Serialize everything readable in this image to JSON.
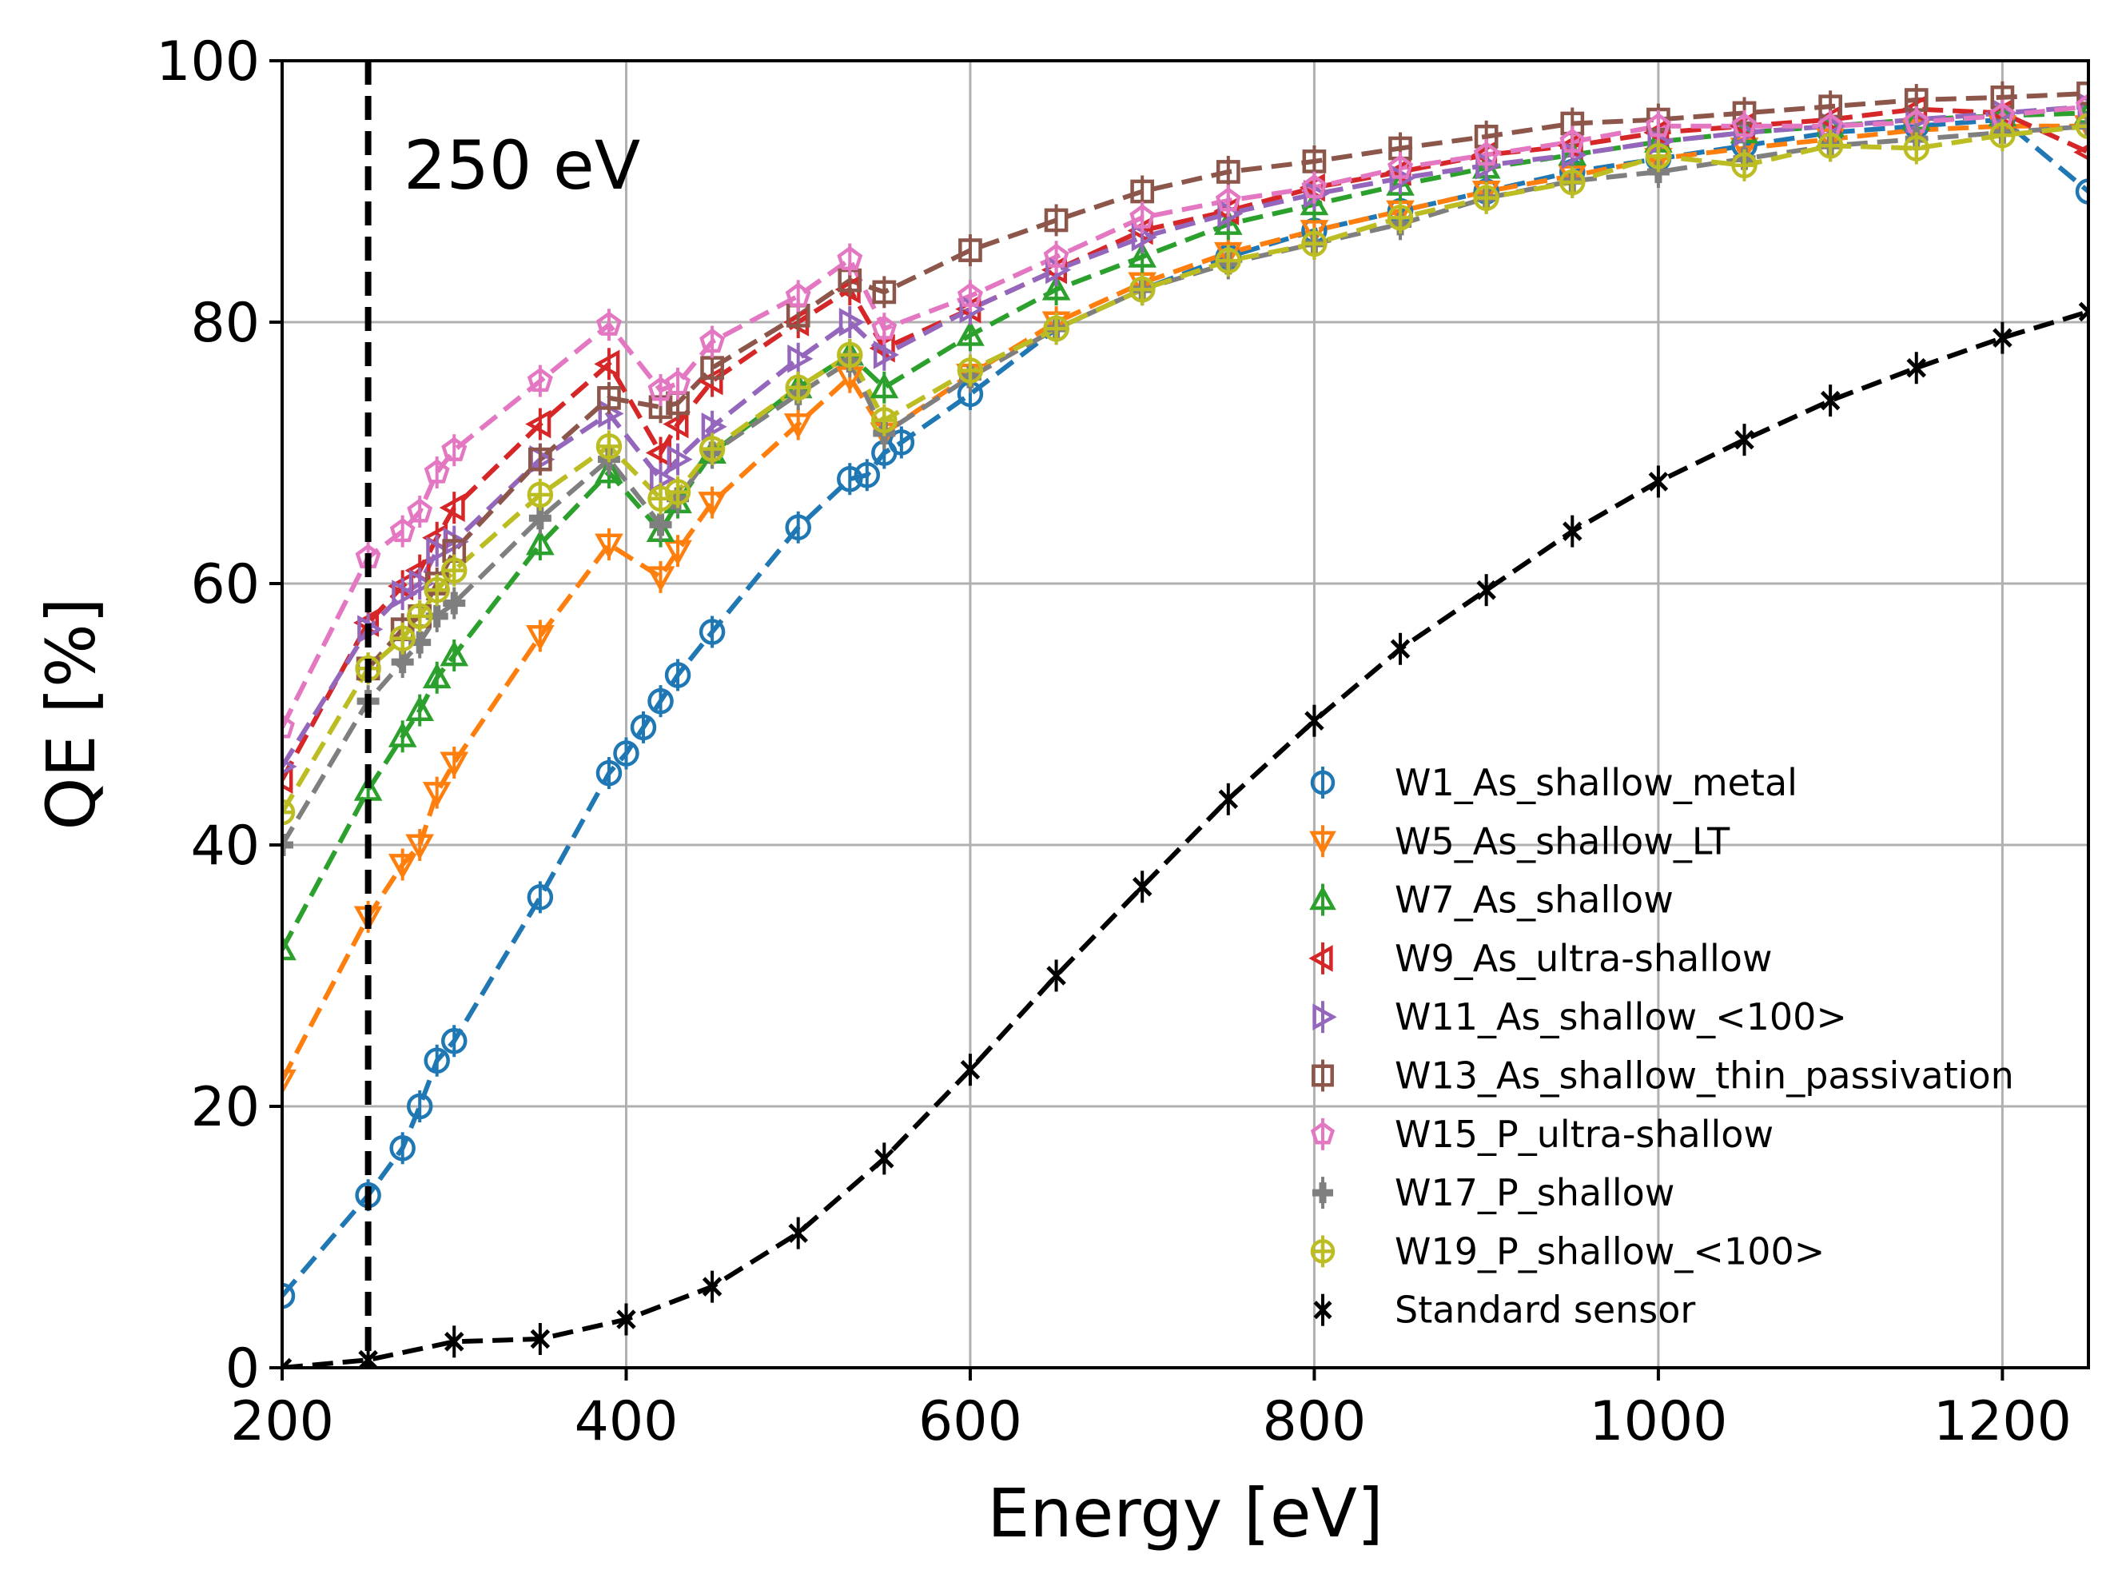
{
  "chart_data": {
    "type": "line",
    "title": "",
    "xlabel": "Energy [eV]",
    "ylabel": "QE [%]",
    "xlim": [
      200,
      1250
    ],
    "ylim": [
      0,
      100
    ],
    "x_ticks": [
      200,
      400,
      600,
      800,
      1000,
      1200
    ],
    "y_ticks": [
      0,
      20,
      40,
      60,
      80,
      100
    ],
    "grid": true,
    "legend_position": "lower-right",
    "annotation": {
      "text": "250 eV",
      "x_line": 250
    },
    "series": [
      {
        "name": "W1_As_shallow_metal",
        "color": "#1f77b4",
        "marker": "circle",
        "points": [
          [
            200,
            5.5
          ],
          [
            250,
            13.2
          ],
          [
            270,
            16.8
          ],
          [
            280,
            20
          ],
          [
            290,
            23.5
          ],
          [
            300,
            25
          ],
          [
            350,
            36
          ],
          [
            390,
            45.5
          ],
          [
            400,
            47
          ],
          [
            410,
            49
          ],
          [
            420,
            51
          ],
          [
            430,
            53
          ],
          [
            450,
            56.3
          ],
          [
            500,
            64.3
          ],
          [
            530,
            68
          ],
          [
            540,
            68.3
          ],
          [
            550,
            70
          ],
          [
            560,
            70.8
          ],
          [
            600,
            74.5
          ],
          [
            650,
            79.5
          ],
          [
            700,
            82.5
          ],
          [
            750,
            85
          ],
          [
            800,
            87
          ],
          [
            850,
            88.5
          ],
          [
            900,
            90
          ],
          [
            950,
            91.5
          ],
          [
            1000,
            92.5
          ],
          [
            1050,
            93.5
          ],
          [
            1100,
            94.5
          ],
          [
            1150,
            95
          ],
          [
            1200,
            95.5
          ],
          [
            1250,
            90
          ]
        ]
      },
      {
        "name": "W5_As_shallow_LT",
        "color": "#ff7f0e",
        "marker": "triangle-down",
        "points": [
          [
            200,
            22
          ],
          [
            250,
            34.5
          ],
          [
            270,
            38.5
          ],
          [
            280,
            40
          ],
          [
            290,
            44
          ],
          [
            300,
            46.3
          ],
          [
            350,
            56
          ],
          [
            390,
            63
          ],
          [
            420,
            60.5
          ],
          [
            430,
            62.5
          ],
          [
            450,
            66.2
          ],
          [
            500,
            72.2
          ],
          [
            530,
            75.8
          ],
          [
            550,
            71.5
          ],
          [
            600,
            76
          ],
          [
            650,
            80
          ],
          [
            700,
            83
          ],
          [
            750,
            85.3
          ],
          [
            800,
            87
          ],
          [
            850,
            88.5
          ],
          [
            900,
            90
          ],
          [
            950,
            91.2
          ],
          [
            1000,
            92.5
          ],
          [
            1050,
            93.3
          ],
          [
            1100,
            94
          ],
          [
            1150,
            94.7
          ],
          [
            1200,
            95
          ],
          [
            1250,
            95
          ]
        ]
      },
      {
        "name": "W7_As_shallow",
        "color": "#2ca02c",
        "marker": "triangle-up",
        "points": [
          [
            200,
            32
          ],
          [
            250,
            44.2
          ],
          [
            270,
            48.3
          ],
          [
            280,
            50.3
          ],
          [
            290,
            52.8
          ],
          [
            300,
            54.5
          ],
          [
            350,
            63
          ],
          [
            390,
            68.5
          ],
          [
            420,
            64
          ],
          [
            430,
            66.2
          ],
          [
            450,
            70
          ],
          [
            500,
            75
          ],
          [
            530,
            77.5
          ],
          [
            550,
            75
          ],
          [
            600,
            79
          ],
          [
            650,
            82.5
          ],
          [
            700,
            85
          ],
          [
            750,
            87.5
          ],
          [
            800,
            89
          ],
          [
            850,
            90.5
          ],
          [
            900,
            91.8
          ],
          [
            950,
            92.8
          ],
          [
            1000,
            93.8
          ],
          [
            1050,
            94.5
          ],
          [
            1100,
            95
          ],
          [
            1150,
            95.5
          ],
          [
            1200,
            95.8
          ],
          [
            1250,
            96
          ]
        ]
      },
      {
        "name": "W9_As_ultra-shallow",
        "color": "#d62728",
        "marker": "triangle-left",
        "points": [
          [
            200,
            45
          ],
          [
            250,
            57
          ],
          [
            270,
            59.8
          ],
          [
            280,
            61
          ],
          [
            290,
            63.5
          ],
          [
            300,
            65.8
          ],
          [
            350,
            72.2
          ],
          [
            390,
            76.8
          ],
          [
            420,
            70
          ],
          [
            430,
            72.2
          ],
          [
            450,
            75.5
          ],
          [
            500,
            80
          ],
          [
            530,
            82.5
          ],
          [
            550,
            78
          ],
          [
            600,
            81
          ],
          [
            650,
            84
          ],
          [
            700,
            87
          ],
          [
            750,
            88.5
          ],
          [
            800,
            90.3
          ],
          [
            850,
            91.5
          ],
          [
            900,
            92.8
          ],
          [
            950,
            93.5
          ],
          [
            1000,
            94.5
          ],
          [
            1050,
            95
          ],
          [
            1100,
            95.5
          ],
          [
            1150,
            96.3
          ],
          [
            1200,
            96
          ],
          [
            1250,
            93
          ]
        ]
      },
      {
        "name": "W11_As_shallow_<100>",
        "color": "#9467bd",
        "marker": "triangle-right",
        "points": [
          [
            200,
            46
          ],
          [
            250,
            56.5
          ],
          [
            270,
            59.2
          ],
          [
            280,
            60
          ],
          [
            290,
            62.5
          ],
          [
            300,
            63.2
          ],
          [
            350,
            69.5
          ],
          [
            390,
            73
          ],
          [
            420,
            68
          ],
          [
            430,
            69.5
          ],
          [
            450,
            72
          ],
          [
            500,
            77.2
          ],
          [
            530,
            80
          ],
          [
            550,
            77.5
          ],
          [
            600,
            81
          ],
          [
            650,
            84
          ],
          [
            700,
            86.5
          ],
          [
            750,
            88.3
          ],
          [
            800,
            89.8
          ],
          [
            850,
            91
          ],
          [
            900,
            92
          ],
          [
            950,
            92.8
          ],
          [
            1000,
            93.8
          ],
          [
            1050,
            94.5
          ],
          [
            1100,
            95
          ],
          [
            1150,
            95.5
          ],
          [
            1200,
            96
          ],
          [
            1250,
            96.5
          ]
        ]
      },
      {
        "name": "W13_As_shallow_thin_passivation",
        "color": "#8c564b",
        "marker": "square",
        "points": [
          [
            250,
            53.5
          ],
          [
            270,
            56.5
          ],
          [
            280,
            57.5
          ],
          [
            290,
            60
          ],
          [
            300,
            62.5
          ],
          [
            350,
            69.5
          ],
          [
            390,
            74.2
          ],
          [
            420,
            73.5
          ],
          [
            430,
            73.8
          ],
          [
            450,
            76.5
          ],
          [
            500,
            80.5
          ],
          [
            530,
            83.2
          ],
          [
            550,
            82.3
          ],
          [
            600,
            85.5
          ],
          [
            650,
            87.8
          ],
          [
            700,
            90
          ],
          [
            750,
            91.5
          ],
          [
            800,
            92.3
          ],
          [
            850,
            93.3
          ],
          [
            900,
            94.2
          ],
          [
            950,
            95.2
          ],
          [
            1000,
            95.5
          ],
          [
            1050,
            96
          ],
          [
            1100,
            96.5
          ],
          [
            1150,
            97
          ],
          [
            1200,
            97.2
          ],
          [
            1250,
            97.5
          ]
        ]
      },
      {
        "name": "W15_P_ultra-shallow",
        "color": "#e377c2",
        "marker": "pentagon",
        "points": [
          [
            200,
            49
          ],
          [
            250,
            62
          ],
          [
            270,
            64
          ],
          [
            280,
            65.5
          ],
          [
            290,
            68.5
          ],
          [
            300,
            70.2
          ],
          [
            350,
            75.5
          ],
          [
            390,
            79.8
          ],
          [
            420,
            74.8
          ],
          [
            430,
            75.3
          ],
          [
            450,
            78.5
          ],
          [
            500,
            82
          ],
          [
            530,
            84.8
          ],
          [
            550,
            79.5
          ],
          [
            600,
            82
          ],
          [
            650,
            85
          ],
          [
            700,
            88
          ],
          [
            750,
            89.3
          ],
          [
            800,
            90.3
          ],
          [
            850,
            91.8
          ],
          [
            900,
            92.8
          ],
          [
            950,
            93.8
          ],
          [
            1000,
            95
          ],
          [
            1050,
            95
          ],
          [
            1100,
            95
          ],
          [
            1150,
            95.3
          ],
          [
            1200,
            95.8
          ],
          [
            1250,
            96.5
          ]
        ]
      },
      {
        "name": "W17_P_shallow",
        "color": "#7f7f7f",
        "marker": "plus",
        "points": [
          [
            200,
            40
          ],
          [
            250,
            51
          ],
          [
            270,
            54
          ],
          [
            280,
            55.5
          ],
          [
            290,
            57.5
          ],
          [
            300,
            58.5
          ],
          [
            350,
            65
          ],
          [
            390,
            69.5
          ],
          [
            420,
            64.5
          ],
          [
            430,
            66.5
          ],
          [
            450,
            70
          ],
          [
            500,
            74.5
          ],
          [
            530,
            77
          ],
          [
            550,
            71.5
          ],
          [
            600,
            75.8
          ],
          [
            650,
            79.5
          ],
          [
            700,
            82.5
          ],
          [
            750,
            84.5
          ],
          [
            800,
            86
          ],
          [
            850,
            87.5
          ],
          [
            900,
            89.5
          ],
          [
            950,
            90.8
          ],
          [
            1000,
            91.5
          ],
          [
            1050,
            92.5
          ],
          [
            1100,
            93.5
          ],
          [
            1150,
            94
          ],
          [
            1200,
            94.5
          ],
          [
            1250,
            95
          ]
        ]
      },
      {
        "name": "W19_P_shallow_<100>",
        "color": "#bcbd22",
        "marker": "plus-circle",
        "points": [
          [
            200,
            42.5
          ],
          [
            250,
            53.5
          ],
          [
            270,
            55.8
          ],
          [
            280,
            57.5
          ],
          [
            290,
            59.5
          ],
          [
            300,
            61
          ],
          [
            350,
            66.8
          ],
          [
            390,
            70.5
          ],
          [
            420,
            66.5
          ],
          [
            430,
            67
          ],
          [
            450,
            70.3
          ],
          [
            500,
            75
          ],
          [
            530,
            77.5
          ],
          [
            550,
            72.5
          ],
          [
            600,
            76.3
          ],
          [
            650,
            79.5
          ],
          [
            700,
            82.5
          ],
          [
            750,
            84.7
          ],
          [
            800,
            86
          ],
          [
            850,
            88
          ],
          [
            900,
            89.5
          ],
          [
            950,
            90.7
          ],
          [
            1000,
            92.7
          ],
          [
            1050,
            92
          ],
          [
            1100,
            93.5
          ],
          [
            1150,
            93.3
          ],
          [
            1200,
            94.3
          ],
          [
            1250,
            95
          ]
        ]
      },
      {
        "name": "Standard sensor",
        "color": "#000000",
        "marker": "x",
        "points": [
          [
            200,
            0
          ],
          [
            250,
            0.6
          ],
          [
            300,
            2
          ],
          [
            350,
            2.2
          ],
          [
            400,
            3.7
          ],
          [
            450,
            6.2
          ],
          [
            500,
            10.3
          ],
          [
            550,
            16
          ],
          [
            600,
            22.8
          ],
          [
            650,
            30
          ],
          [
            700,
            36.8
          ],
          [
            750,
            43.5
          ],
          [
            800,
            49.5
          ],
          [
            850,
            55
          ],
          [
            900,
            59.5
          ],
          [
            950,
            64
          ],
          [
            1000,
            67.8
          ],
          [
            1050,
            71
          ],
          [
            1100,
            74
          ],
          [
            1150,
            76.5
          ],
          [
            1200,
            78.8
          ],
          [
            1250,
            80.8
          ]
        ]
      }
    ]
  }
}
